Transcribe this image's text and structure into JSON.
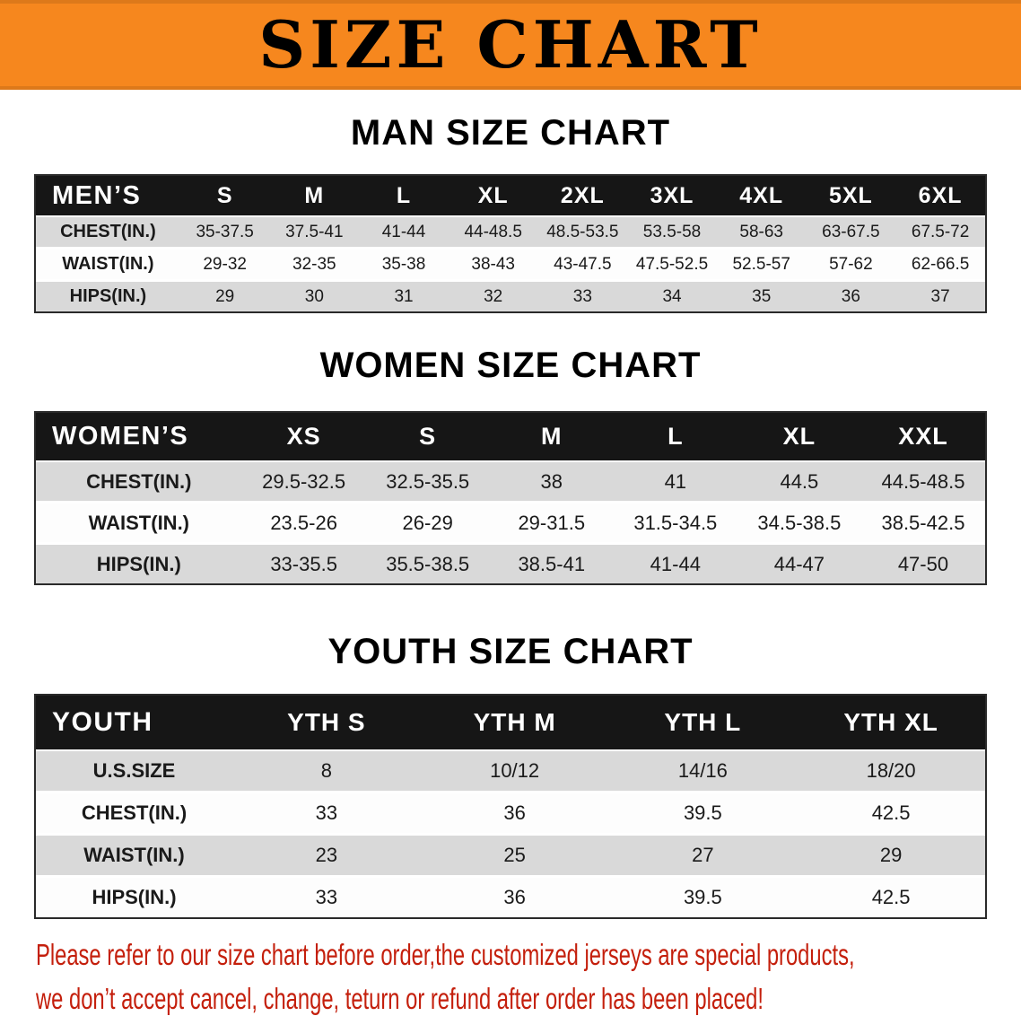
{
  "colors": {
    "banner_orange": "#f6871e",
    "table_header_black": "#161616",
    "row_shade_gray": "#d9d9d9",
    "notice_red": "#c41f0c"
  },
  "banner": {
    "title": "SIZE CHART"
  },
  "sections": [
    {
      "id": "men",
      "title": "MAN SIZE CHART",
      "table": {
        "group_label": "MEN’S",
        "columns": [
          "S",
          "M",
          "L",
          "XL",
          "2XL",
          "3XL",
          "4XL",
          "5XL",
          "6XL"
        ],
        "rows": [
          {
            "label": "CHEST(IN.)",
            "values": [
              "35-37.5",
              "37.5-41",
              "41-44",
              "44-48.5",
              "48.5-53.5",
              "53.5-58",
              "58-63",
              "63-67.5",
              "67.5-72"
            ]
          },
          {
            "label": "WAIST(IN.)",
            "values": [
              "29-32",
              "32-35",
              "35-38",
              "38-43",
              "43-47.5",
              "47.5-52.5",
              "52.5-57",
              "57-62",
              "62-66.5"
            ]
          },
          {
            "label": "HIPS(IN.)",
            "values": [
              "29",
              "30",
              "31",
              "32",
              "33",
              "34",
              "35",
              "36",
              "37"
            ]
          }
        ]
      }
    },
    {
      "id": "women",
      "title": "WOMEN SIZE CHART",
      "table": {
        "group_label": "WOMEN’S",
        "columns": [
          "XS",
          "S",
          "M",
          "L",
          "XL",
          "XXL"
        ],
        "rows": [
          {
            "label": "CHEST(IN.)",
            "values": [
              "29.5-32.5",
              "32.5-35.5",
              "38",
              "41",
              "44.5",
              "44.5-48.5"
            ]
          },
          {
            "label": "WAIST(IN.)",
            "values": [
              "23.5-26",
              "26-29",
              "29-31.5",
              "31.5-34.5",
              "34.5-38.5",
              "38.5-42.5"
            ]
          },
          {
            "label": "HIPS(IN.)",
            "values": [
              "33-35.5",
              "35.5-38.5",
              "38.5-41",
              "41-44",
              "44-47",
              "47-50"
            ]
          }
        ]
      }
    },
    {
      "id": "youth",
      "title": "YOUTH SIZE CHART",
      "table": {
        "group_label": "YOUTH",
        "columns": [
          "YTH S",
          "YTH M",
          "YTH L",
          "YTH XL"
        ],
        "rows": [
          {
            "label": "U.S.SIZE",
            "values": [
              "8",
              "10/12",
              "14/16",
              "18/20"
            ]
          },
          {
            "label": "CHEST(IN.)",
            "values": [
              "33",
              "36",
              "39.5",
              "42.5"
            ]
          },
          {
            "label": "WAIST(IN.)",
            "values": [
              "23",
              "25",
              "27",
              "29"
            ]
          },
          {
            "label": "HIPS(IN.)",
            "values": [
              "33",
              "36",
              "39.5",
              "42.5"
            ]
          }
        ]
      }
    }
  ],
  "notice": {
    "line1": "Please refer to our size chart before order,the customized jerseys are special products,",
    "line2": "we don’t accept cancel, change, teturn or refund after order has been placed!"
  }
}
